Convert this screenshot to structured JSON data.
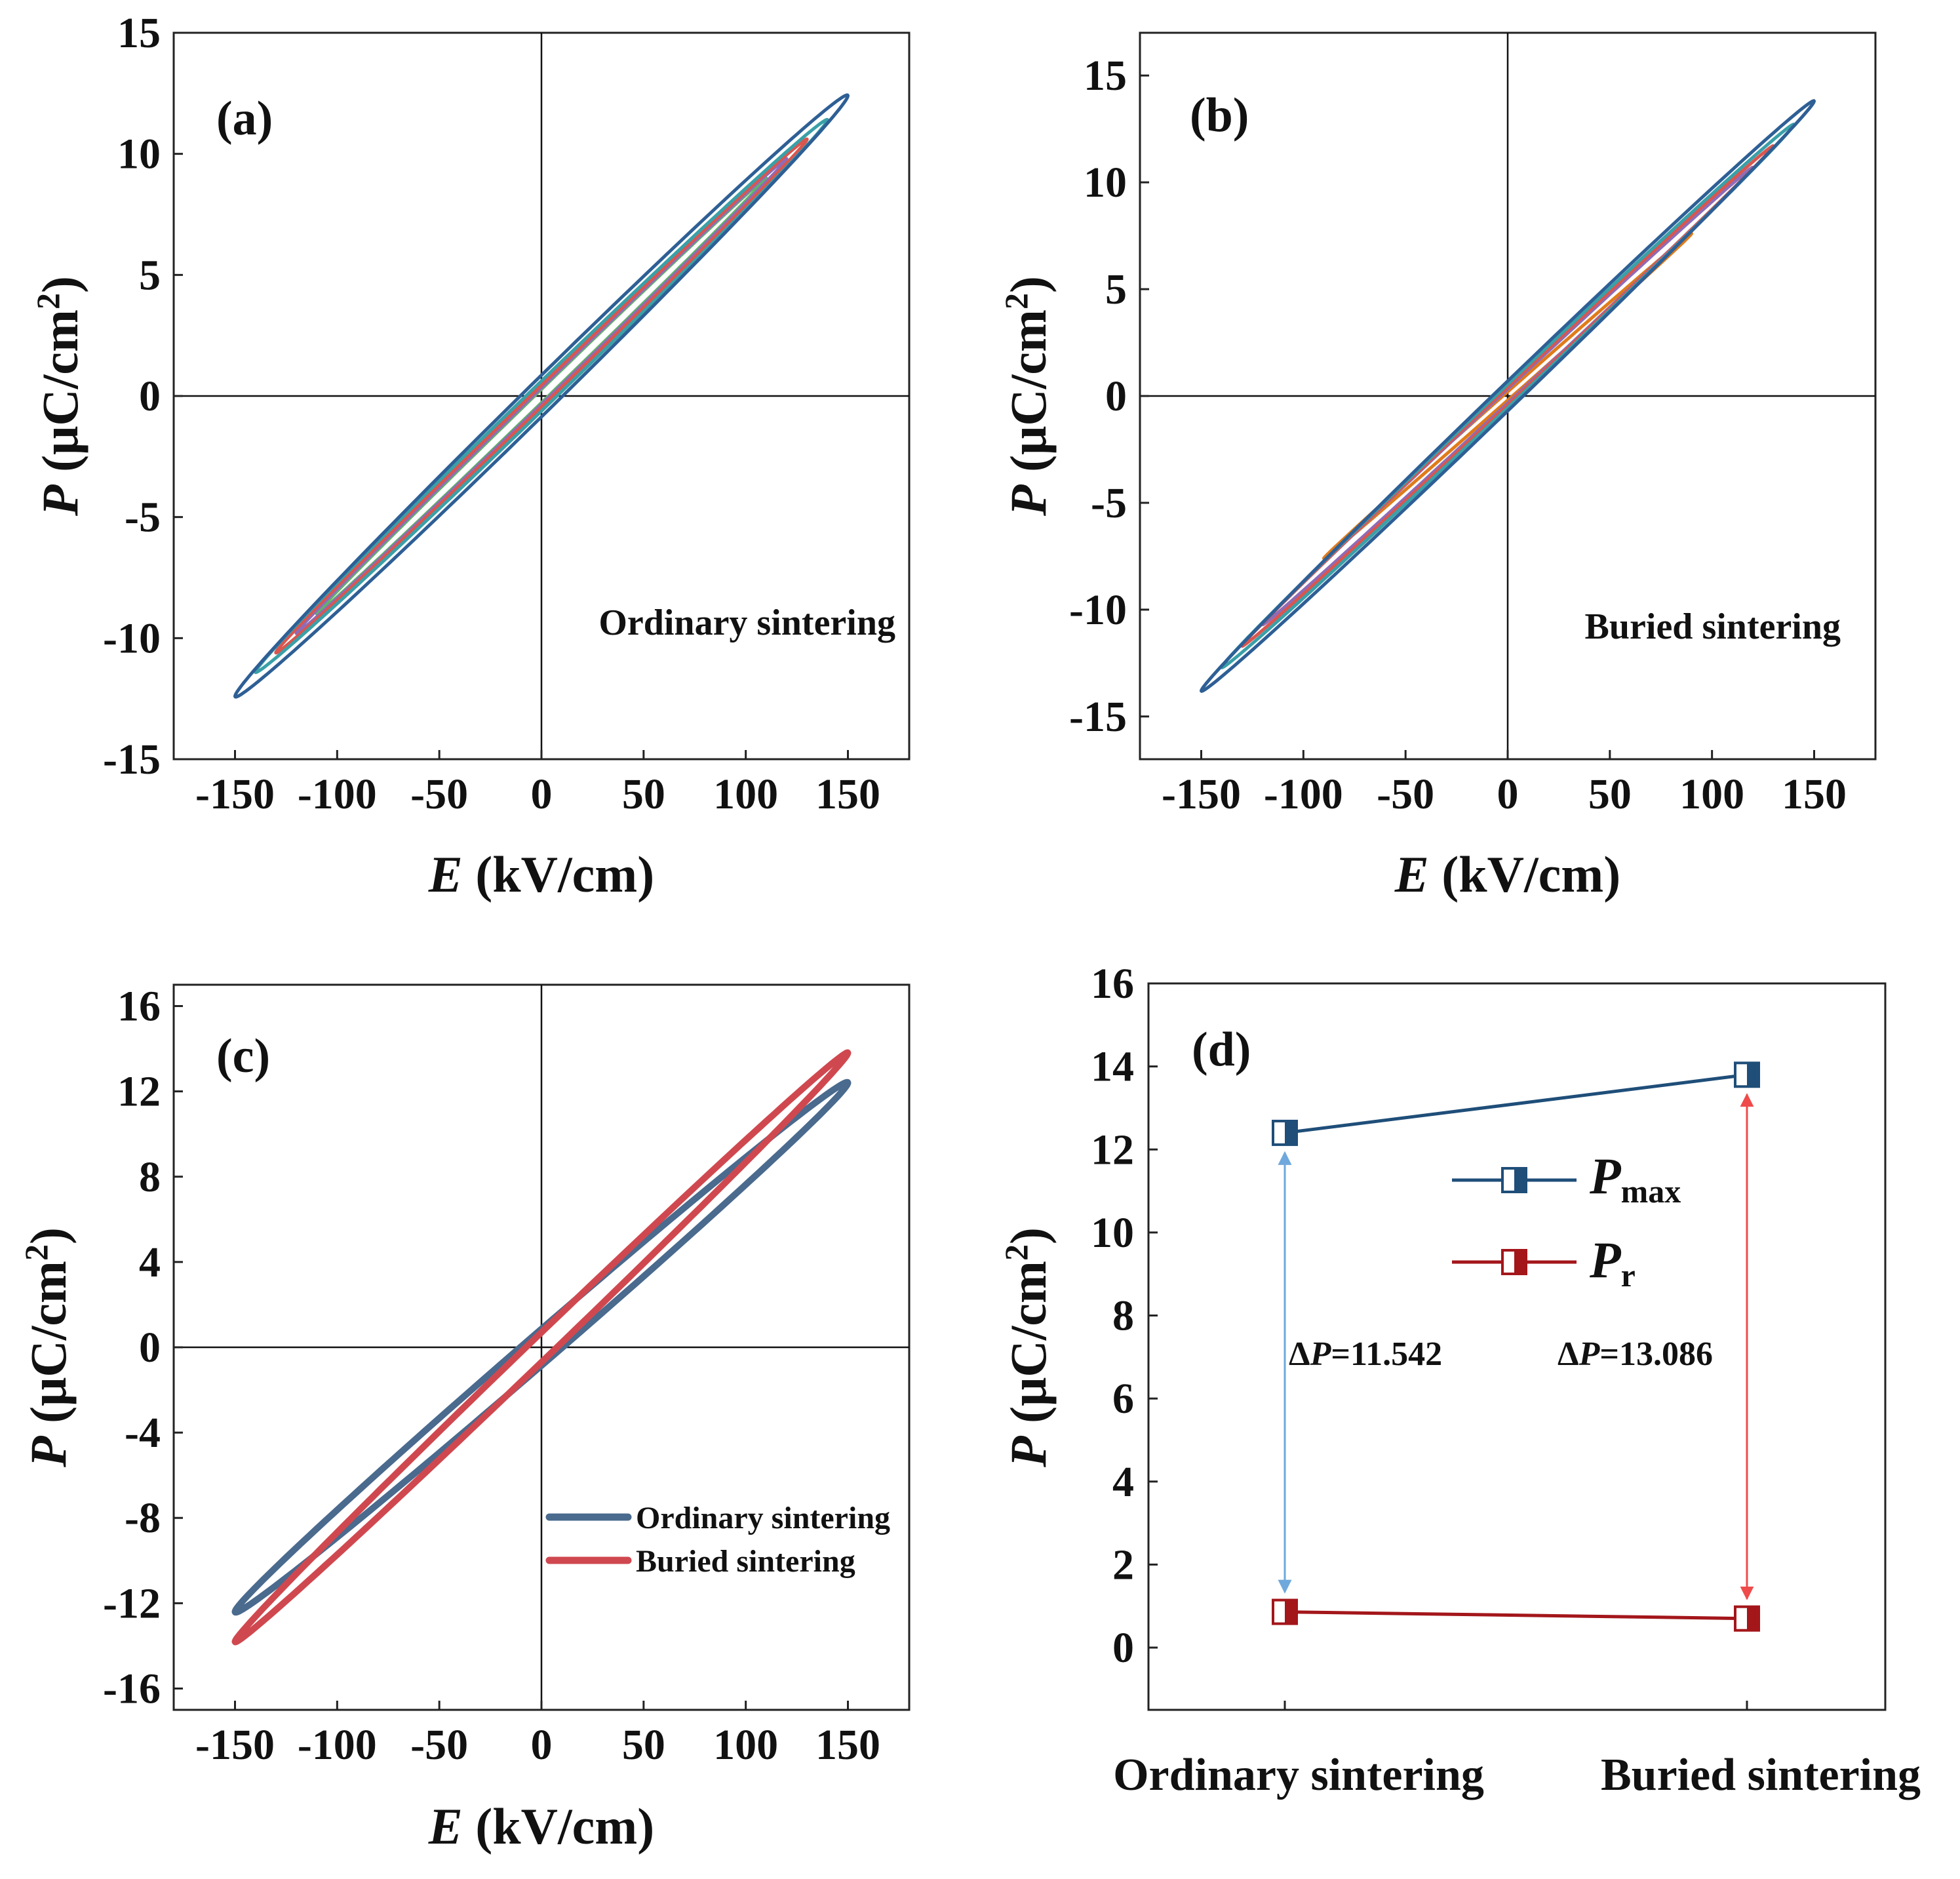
{
  "chart_data": [
    {
      "type": "line",
      "panel": "(a)",
      "annotation": "Ordinary sintering",
      "xlabel_italic": "E",
      "xlabel_rest": " (kV/cm)",
      "ylabel_italic": "P",
      "ylabel_rest": " (μC/cm",
      "ylabel_sup": "2",
      "ylabel_close": ")",
      "xlim": [
        -180,
        180
      ],
      "ylim": [
        -15,
        15
      ],
      "xticks": [
        "-150",
        "-100",
        "-50",
        "0",
        "50",
        "100",
        "150"
      ],
      "yticks": [
        "15",
        "10",
        "5",
        "0",
        "-5",
        "-10",
        "-15"
      ],
      "loops": [
        {
          "emax": 150,
          "pmax": 12.4,
          "pr": 0.86,
          "color": "#2e5f95"
        },
        {
          "emax": 140,
          "pmax": 11.4,
          "pr": 0.62,
          "color": "#3aa0a8"
        },
        {
          "emax": 130,
          "pmax": 10.6,
          "pr": 0.45,
          "color": "#d9564f"
        },
        {
          "emax": 120,
          "pmax": 9.8,
          "pr": 0.35,
          "color": "#8f6bb8"
        },
        {
          "emax": 110,
          "pmax": 9.0,
          "pr": 0.28,
          "color": "#5fb36a"
        }
      ]
    },
    {
      "type": "line",
      "panel": "(b)",
      "annotation": "Buried sintering",
      "xlabel_italic": "E",
      "xlabel_rest": " (kV/cm)",
      "ylabel_italic": "P",
      "ylabel_rest": " (μC/cm",
      "ylabel_sup": "2",
      "ylabel_close": ")",
      "xlim": [
        -180,
        180
      ],
      "ylim": [
        -17,
        17
      ],
      "xticks": [
        "-150",
        "-100",
        "-50",
        "0",
        "50",
        "100",
        "150"
      ],
      "yticks": [
        "15",
        "10",
        "5",
        "0",
        "-5",
        "-10",
        "-15"
      ],
      "loops": [
        {
          "emax": 150,
          "pmax": 13.8,
          "pr": 0.7,
          "color": "#2e5f95"
        },
        {
          "emax": 140,
          "pmax": 12.7,
          "pr": 0.55,
          "color": "#3aa0a8"
        },
        {
          "emax": 130,
          "pmax": 11.7,
          "pr": 0.42,
          "color": "#d9564f"
        },
        {
          "emax": 120,
          "pmax": 10.7,
          "pr": 0.33,
          "color": "#8f6bb8"
        },
        {
          "emax": 90,
          "pmax": 7.6,
          "pr": 0.2,
          "color": "#e07b1a"
        }
      ]
    },
    {
      "type": "line",
      "panel": "(c)",
      "xlabel_italic": "E",
      "xlabel_rest": " (kV/cm)",
      "ylabel_italic": "P",
      "ylabel_rest": " (μC/cm",
      "ylabel_sup": "2",
      "ylabel_close": ")",
      "xlim": [
        -180,
        180
      ],
      "ylim": [
        -17,
        17
      ],
      "xticks": [
        "-150",
        "-100",
        "-50",
        "0",
        "50",
        "100",
        "150"
      ],
      "yticks": [
        "16",
        "12",
        "8",
        "4",
        "0",
        "-4",
        "-8",
        "-12",
        "-16"
      ],
      "legend": "bottom-right",
      "series": [
        {
          "name": "Ordinary sintering",
          "emax": 150,
          "pmax": 12.4,
          "pr": 0.86,
          "color": "#4a6a8e"
        },
        {
          "name": "Buried sintering",
          "emax": 150,
          "pmax": 13.8,
          "pr": 0.7,
          "color": "#d0484f"
        }
      ]
    },
    {
      "type": "line",
      "panel": "(d)",
      "ylabel_italic": "P",
      "ylabel_rest": " (μC/cm",
      "ylabel_sup": "2",
      "ylabel_close": ")",
      "categories": [
        "Ordinary sintering",
        "Buried sintering"
      ],
      "ylim": [
        -1.5,
        16
      ],
      "yticks": [
        "16",
        "14",
        "12",
        "10",
        "8",
        "6",
        "4",
        "2",
        "0"
      ],
      "legend": "upper-middle",
      "series": [
        {
          "name": "P",
          "sub": "max",
          "values": [
            12.4,
            13.8
          ],
          "color": "#1f4e79"
        },
        {
          "name": "P",
          "sub": "r",
          "values": [
            0.86,
            0.7
          ],
          "color": "#a3161a"
        }
      ],
      "annotations": [
        {
          "prefix": "Δ",
          "italic": "P",
          "text": "=11.542",
          "color": "#1f4e79",
          "arrow_color": "#6fa8dc"
        },
        {
          "prefix": "Δ",
          "italic": "P",
          "text": "=13.086",
          "color": "#a3161a",
          "arrow_color": "#ef4b4b"
        }
      ]
    }
  ]
}
